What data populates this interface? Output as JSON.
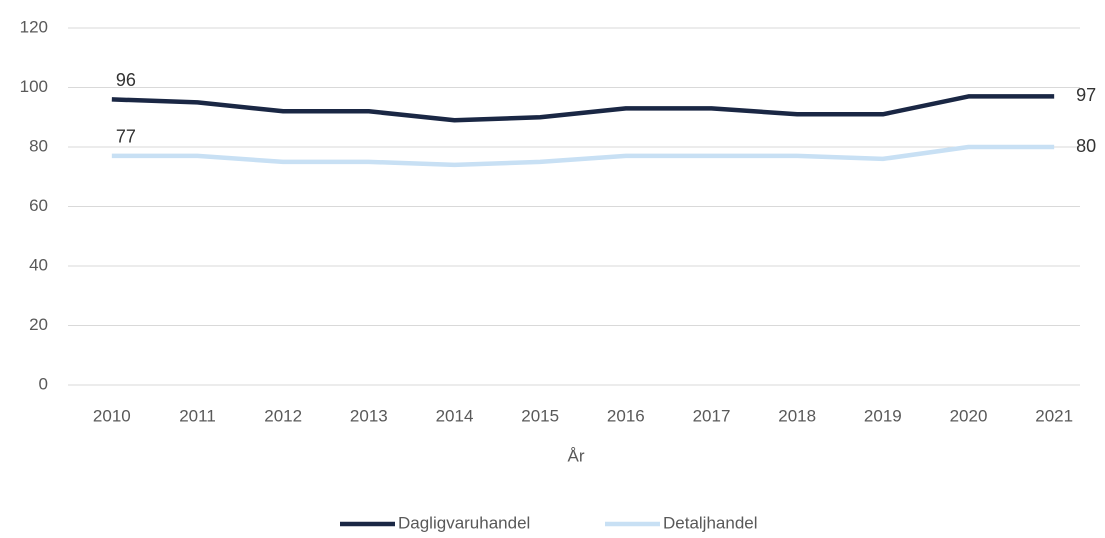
{
  "chart_data": {
    "type": "line",
    "x_label": "År",
    "categories": [
      "2010",
      "2011",
      "2012",
      "2013",
      "2014",
      "2015",
      "2016",
      "2017",
      "2018",
      "2019",
      "2020",
      "2021"
    ],
    "series": [
      {
        "name": "Dagligvaruhandel",
        "color": "#1a2744",
        "values": [
          96,
          95,
          92,
          92,
          89,
          90,
          93,
          93,
          91,
          91,
          97,
          97
        ]
      },
      {
        "name": "Detaljhandel",
        "color": "#c8e0f4",
        "values": [
          77,
          77,
          75,
          75,
          74,
          75,
          77,
          77,
          77,
          76,
          80,
          80
        ]
      }
    ],
    "ylim": [
      0,
      120
    ],
    "yticks": [
      0,
      20,
      40,
      60,
      80,
      100,
      120
    ],
    "grid": true,
    "data_labels": "ends",
    "legend": "bottom"
  }
}
